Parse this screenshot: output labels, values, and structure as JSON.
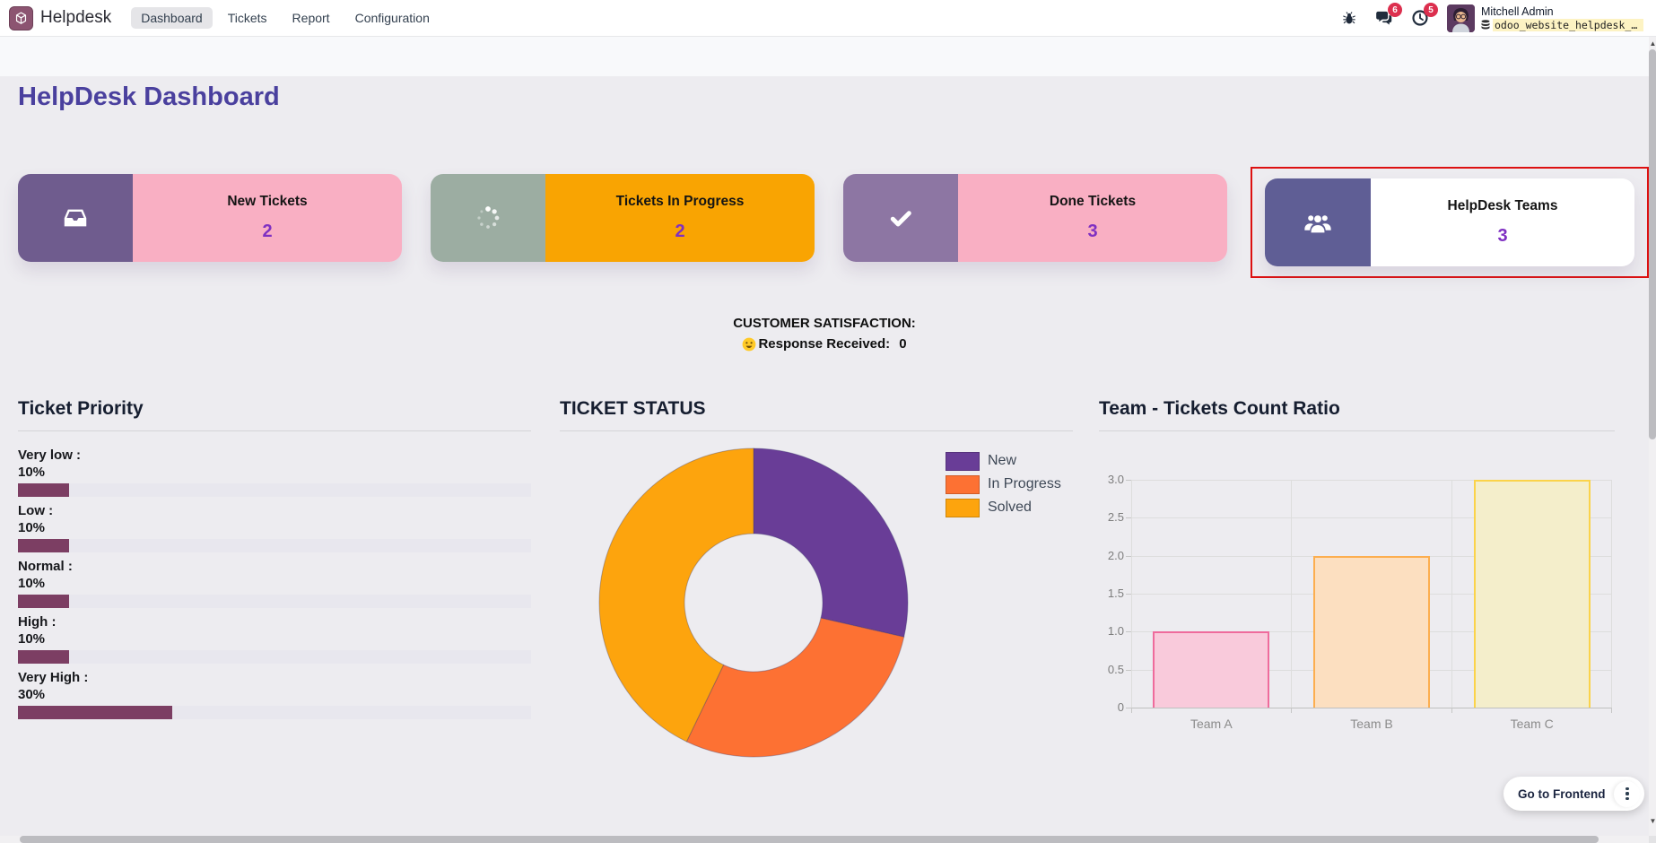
{
  "navbar": {
    "app_name": "Helpdesk",
    "menu": [
      {
        "label": "Dashboard",
        "active": true
      },
      {
        "label": "Tickets",
        "active": false
      },
      {
        "label": "Report",
        "active": false
      },
      {
        "label": "Configuration",
        "active": false
      }
    ],
    "messages_badge": "6",
    "activities_badge": "5",
    "user_name": "Mitchell Admin",
    "database": "odoo_website_helpdesk_da…"
  },
  "page_title": "HelpDesk Dashboard",
  "kpi_cards": [
    {
      "title": "New Tickets",
      "count": "2",
      "icon": "inbox-icon",
      "left_bg": "#6f5c8e",
      "right_bg": "#f9afc3",
      "highlighted": false
    },
    {
      "title": "Tickets In Progress",
      "count": "2",
      "icon": "spinner-icon",
      "left_bg": "#9cada2",
      "right_bg": "#f9a402",
      "highlighted": false
    },
    {
      "title": "Done Tickets",
      "count": "3",
      "icon": "check-icon",
      "left_bg": "#8d76a3",
      "right_bg": "#f9afc3",
      "highlighted": false
    },
    {
      "title": "HelpDesk Teams",
      "count": "3",
      "icon": "users-icon",
      "left_bg": "#5f5e95",
      "right_bg": "#ffffff",
      "highlighted": true
    }
  ],
  "satisfaction": {
    "title": "CUSTOMER SATISFACTION:",
    "response_label": "Response Received:",
    "response_count": "0"
  },
  "priority_panel": {
    "title": "Ticket Priority",
    "bar_color": "#7c3e63",
    "items": [
      {
        "label": "Very low :",
        "percent": "10%",
        "value": 10
      },
      {
        "label": "Low :",
        "percent": "10%",
        "value": 10
      },
      {
        "label": "Normal :",
        "percent": "10%",
        "value": 10
      },
      {
        "label": "High :",
        "percent": "10%",
        "value": 10
      },
      {
        "label": "Very High :",
        "percent": "30%",
        "value": 30
      }
    ]
  },
  "chart_data": [
    {
      "type": "pie",
      "donut": true,
      "title": "TICKET STATUS",
      "labels": [
        "New",
        "In Progress",
        "Solved"
      ],
      "values": [
        2,
        2,
        3
      ],
      "colors": [
        "#693d97",
        "#fd7133",
        "#fda40d"
      ],
      "inner_radius_ratio": 0.45,
      "legend_position": "right"
    },
    {
      "type": "bar",
      "title": "Team - Tickets Count Ratio",
      "categories": [
        "Team A",
        "Team B",
        "Team C"
      ],
      "values": [
        1,
        2,
        3
      ],
      "bar_fill": [
        "#f9cadb",
        "#fcdfc0",
        "#f4eecb"
      ],
      "bar_border": [
        "#ef6b9c",
        "#fcae4f",
        "#fbd34a"
      ],
      "ylim": [
        0,
        3
      ],
      "yticks": [
        "3.0",
        "2.5",
        "2.0",
        "1.5",
        "1.0",
        "0.5",
        "0"
      ],
      "grid": true,
      "legend_position": "none"
    }
  ],
  "frontend_button": {
    "label": "Go to Frontend"
  },
  "colors": {
    "page_title": "#4a409e",
    "kpi_count": "#7f30c2",
    "highlight_border": "#dd1111",
    "badge": "#dc2f4e"
  }
}
